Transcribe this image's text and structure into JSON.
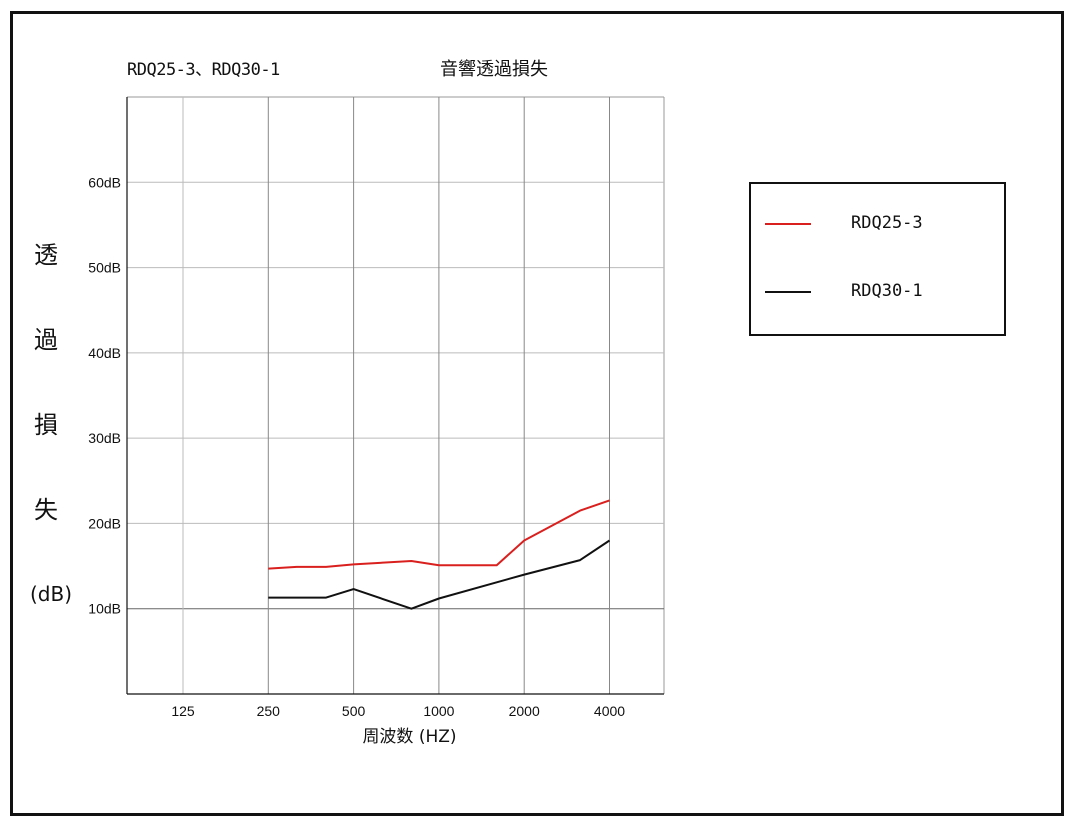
{
  "header": {
    "product_title": "RDQ25-3、RDQ30-1",
    "chart_title": "音響透過損失"
  },
  "chart_data": {
    "type": "line",
    "title": "音響透過損失",
    "xlabel": "周波数 (HZ)",
    "ylabel_chars": [
      "透",
      "過",
      "損",
      "失"
    ],
    "yunit": "(dB)",
    "x_ticks": [
      "125",
      "250",
      "500",
      "1000",
      "2000",
      "4000"
    ],
    "y_ticks": [
      "10dB",
      "20dB",
      "30dB",
      "40dB",
      "50dB",
      "60dB"
    ],
    "y_tick_values": [
      10,
      20,
      30,
      40,
      50,
      60
    ],
    "ylim": [
      0,
      70
    ],
    "x_scale": "log2 octave",
    "grid": true,
    "legend_position": "right",
    "series": [
      {
        "name": "RDQ25-3",
        "color": "#d9201e",
        "points": [
          [
            250,
            14.7
          ],
          [
            315,
            14.9
          ],
          [
            400,
            14.9
          ],
          [
            500,
            15.2
          ],
          [
            800,
            15.6
          ],
          [
            1000,
            15.1
          ],
          [
            1600,
            15.1
          ],
          [
            2000,
            18.0
          ],
          [
            3150,
            21.5
          ],
          [
            4000,
            22.7
          ]
        ]
      },
      {
        "name": "RDQ30-1",
        "color": "#111111",
        "points": [
          [
            250,
            11.3
          ],
          [
            400,
            11.3
          ],
          [
            500,
            12.3
          ],
          [
            800,
            10.0
          ],
          [
            1000,
            11.2
          ],
          [
            2000,
            14.0
          ],
          [
            3150,
            15.7
          ],
          [
            4000,
            18.0
          ]
        ]
      }
    ]
  }
}
